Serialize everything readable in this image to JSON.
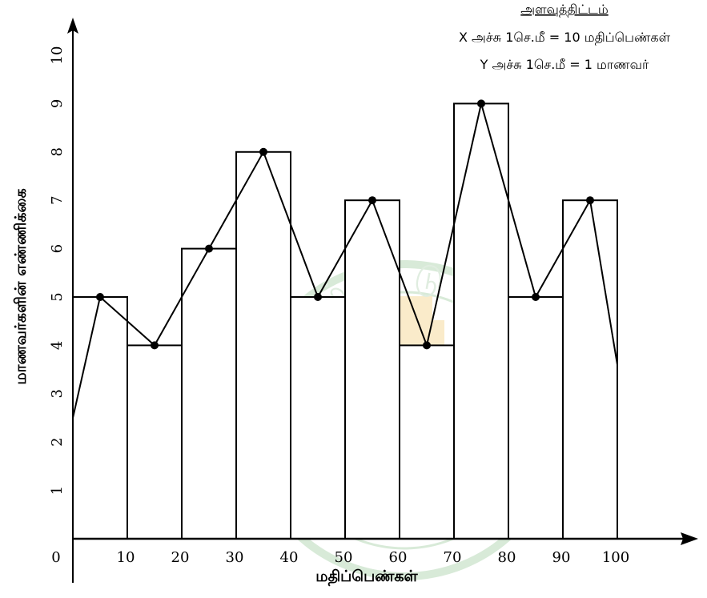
{
  "chart_data": {
    "type": "bar",
    "subtype": "histogram-with-frequency-polygon",
    "bins": [
      [
        0,
        10
      ],
      [
        10,
        20
      ],
      [
        20,
        30
      ],
      [
        30,
        40
      ],
      [
        40,
        50
      ],
      [
        50,
        60
      ],
      [
        60,
        70
      ],
      [
        70,
        80
      ],
      [
        80,
        90
      ],
      [
        90,
        100
      ]
    ],
    "midpoints": [
      5,
      15,
      25,
      35,
      45,
      55,
      65,
      75,
      85,
      95
    ],
    "values": [
      5,
      4,
      6,
      8,
      5,
      7,
      4,
      9,
      5,
      7
    ],
    "polygon": {
      "start": {
        "x": 0,
        "y": 2.5
      },
      "end": {
        "x": 100,
        "y": 3.6
      }
    },
    "xlabel": "மதிப்பெண்கள்",
    "ylabel": "மாணவர்களின் எண்ணிக்கை",
    "xlim": [
      0,
      100
    ],
    "ylim": [
      0,
      10
    ],
    "x_ticks": [
      "0",
      "10",
      "20",
      "30",
      "40",
      "50",
      "60",
      "70",
      "80",
      "90",
      "100"
    ],
    "y_ticks": [
      "1",
      "2",
      "3",
      "4",
      "5",
      "6",
      "7",
      "8",
      "9",
      "10"
    ],
    "scale": {
      "title": "அளவுத்திட்டம்",
      "x_line": "X அச்சு 1செ.மீ = 10 மதிப்பெண்கள்",
      "y_line": "Y அச்சு 1செ.மீ = 1 மாணவர்"
    },
    "grid": false,
    "colors": {
      "bar_fill": "#ffffff",
      "stroke": "#000000",
      "watermark": "#b9d9b9"
    }
  },
  "watermark_text": [
    "த",
    "மி",
    "ழ்",
    "நா",
    "டு",
    "அ",
    "ர",
    "சு"
  ]
}
